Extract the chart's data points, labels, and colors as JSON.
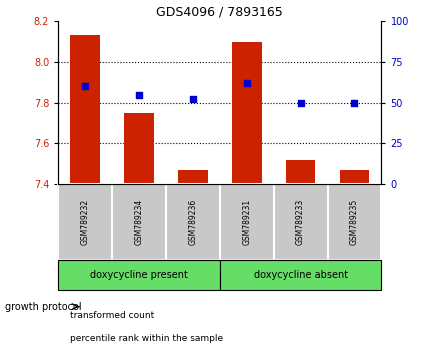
{
  "title": "GDS4096 / 7893165",
  "samples": [
    "GSM789232",
    "GSM789234",
    "GSM789236",
    "GSM789231",
    "GSM789233",
    "GSM789235"
  ],
  "transformed_count": [
    8.13,
    7.75,
    7.47,
    8.1,
    7.52,
    7.47
  ],
  "percentile_rank": [
    60,
    55,
    52,
    62,
    50,
    50
  ],
  "ylim_left": [
    7.4,
    8.2
  ],
  "ylim_right": [
    0,
    100
  ],
  "yticks_left": [
    7.4,
    7.6,
    7.8,
    8.0,
    8.2
  ],
  "yticks_right": [
    0,
    25,
    50,
    75,
    100
  ],
  "baseline": 7.4,
  "bar_color": "#cc2200",
  "dot_color": "#0000cc",
  "group_labels": [
    "doxycycline present",
    "doxycycline absent"
  ],
  "group_ranges": [
    [
      0,
      3
    ],
    [
      3,
      6
    ]
  ],
  "group_bg_color": "#66dd66",
  "sample_bg_color": "#c8c8c8",
  "legend_label_red": "transformed count",
  "legend_label_blue": "percentile rank within the sample",
  "growth_protocol_label": "growth protocol",
  "left_ylabel_color": "#cc2200",
  "right_ylabel_color": "#0000cc",
  "title_color": "#000000",
  "bar_width": 0.55
}
